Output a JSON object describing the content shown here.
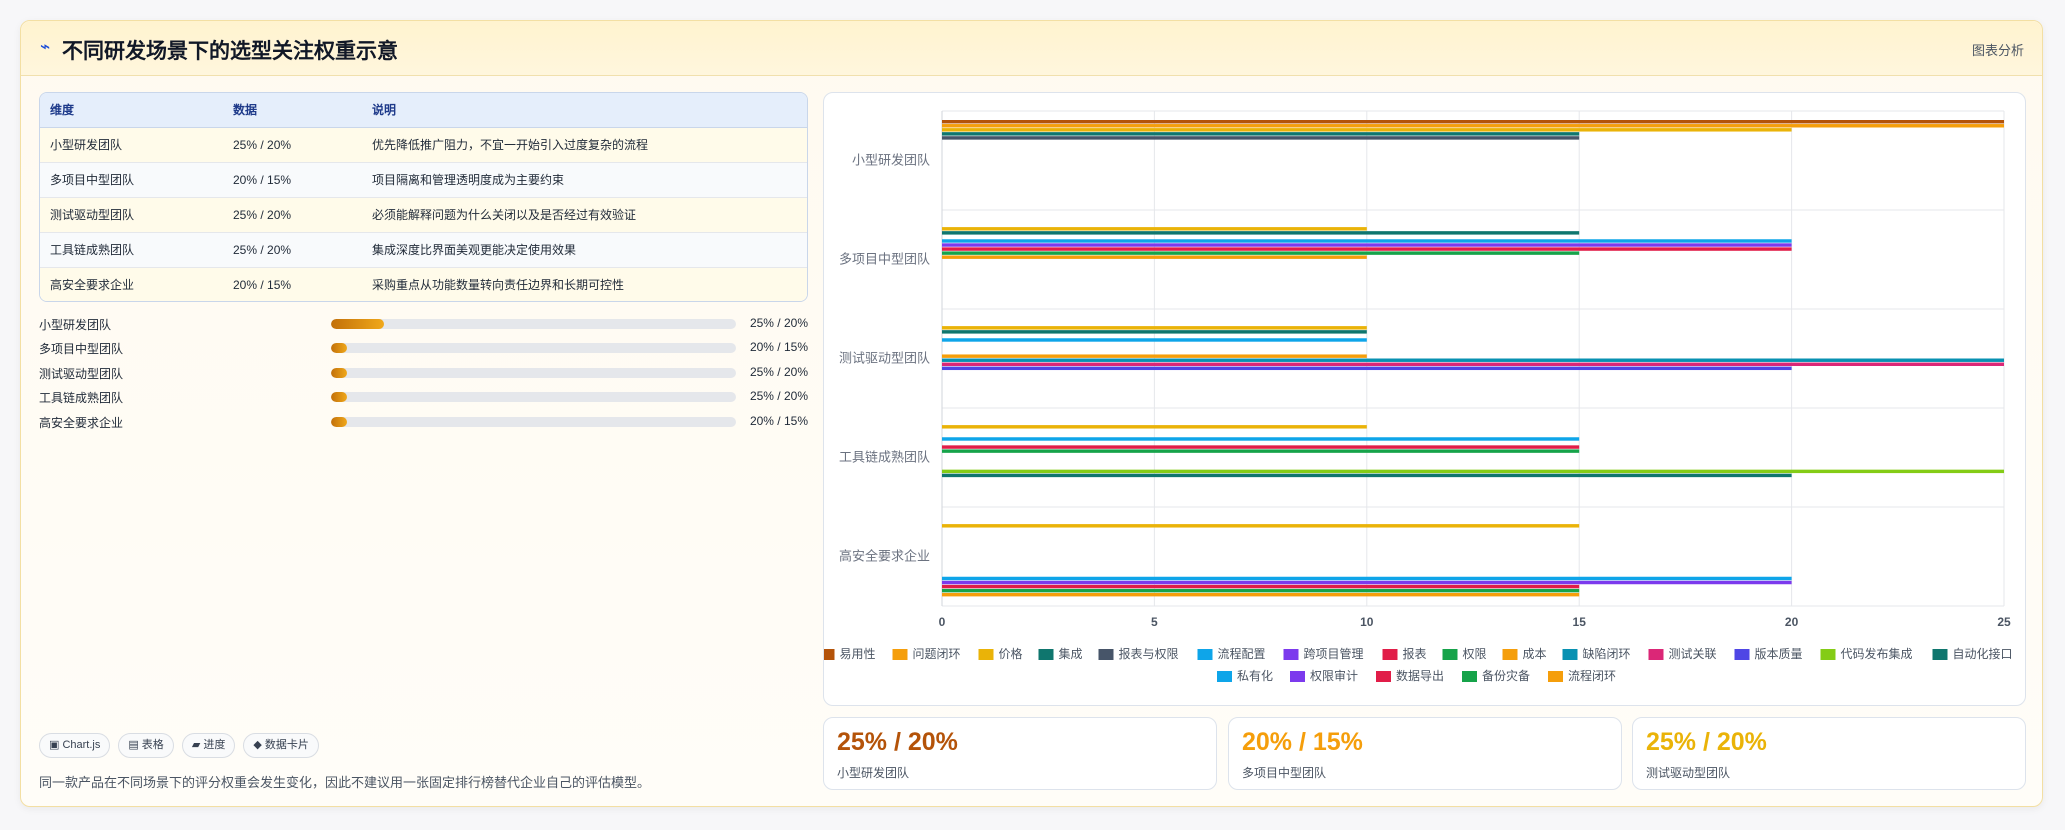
{
  "header": {
    "title": "不同研发场景下的选型关注权重示意",
    "action": "图表分析",
    "logo_icon": "⌁"
  },
  "table": {
    "headers": [
      "维度",
      "数据",
      "说明"
    ],
    "rows": [
      {
        "name": "小型研发团队",
        "data": "25% / 20%",
        "desc": "优先降低推广阻力，不宜一开始引入过度复杂的流程"
      },
      {
        "name": "多项目中型团队",
        "data": "20% / 15%",
        "desc": "项目隔离和管理透明度成为主要约束"
      },
      {
        "name": "测试驱动型团队",
        "data": "25% / 20%",
        "desc": "必须能解释问题为什么关闭以及是否经过有效验证"
      },
      {
        "name": "工具链成熟团队",
        "data": "25% / 20%",
        "desc": "集成深度比界面美观更能决定使用效果"
      },
      {
        "name": "高安全要求企业",
        "data": "20% / 15%",
        "desc": "采购重点从功能数量转向责任边界和长期可控性"
      }
    ]
  },
  "progress": [
    {
      "label": "小型研发团队",
      "value": "25% / 20%",
      "fill": 0.13
    },
    {
      "label": "多项目中型团队",
      "value": "20% / 15%",
      "fill": 0.04
    },
    {
      "label": "测试驱动型团队",
      "value": "25% / 20%",
      "fill": 0.04
    },
    {
      "label": "工具链成熟团队",
      "value": "25% / 20%",
      "fill": 0.04
    },
    {
      "label": "高安全要求企业",
      "value": "20% / 15%",
      "fill": 0.04
    }
  ],
  "chips": [
    "▣ Chart.js",
    "▤ 表格",
    "▰ 进度",
    "◆ 数据卡片"
  ],
  "note": "同一款产品在不同场景下的评分权重会发生变化，因此不建议用一张固定排行榜替代企业自己的评估模型。",
  "stats": [
    {
      "value": "25% / 20%",
      "label": "小型研发团队",
      "color": "#b45309"
    },
    {
      "value": "20% / 15%",
      "label": "多项目中型团队",
      "color": "#f59e0b"
    },
    {
      "value": "25% / 20%",
      "label": "测试驱动型团队",
      "color": "#eab308"
    }
  ],
  "chart_data": {
    "type": "bar",
    "orientation": "horizontal",
    "categories": [
      "小型研发团队",
      "多项目中型团队",
      "测试驱动型团队",
      "工具链成熟团队",
      "高安全要求企业"
    ],
    "xlim": [
      0,
      25
    ],
    "xticks": [
      0,
      5,
      10,
      15,
      20,
      25
    ],
    "grid": true,
    "legend_position": "bottom",
    "series": [
      {
        "name": "易用性",
        "color": "#b45309",
        "values": [
          25,
          null,
          null,
          null,
          null
        ]
      },
      {
        "name": "问题闭环",
        "color": "#f59e0b",
        "values": [
          25,
          null,
          null,
          null,
          null
        ]
      },
      {
        "name": "价格",
        "color": "#eab308",
        "values": [
          20,
          10,
          10,
          10,
          15
        ]
      },
      {
        "name": "集成",
        "color": "#0f766e",
        "values": [
          15,
          15,
          10,
          null,
          null
        ]
      },
      {
        "name": "报表与权限",
        "color": "#475569",
        "values": [
          15,
          null,
          null,
          null,
          null
        ]
      },
      {
        "name": "流程配置",
        "color": "#0ea5e9",
        "values": [
          null,
          20,
          10,
          15,
          null
        ]
      },
      {
        "name": "跨项目管理",
        "color": "#7c3aed",
        "values": [
          null,
          20,
          null,
          null,
          null
        ]
      },
      {
        "name": "报表",
        "color": "#e11d48",
        "values": [
          null,
          20,
          null,
          15,
          null
        ]
      },
      {
        "name": "权限",
        "color": "#16a34a",
        "values": [
          null,
          15,
          null,
          15,
          null
        ]
      },
      {
        "name": "成本",
        "color": "#f59e0b",
        "values": [
          null,
          10,
          10,
          null,
          null
        ]
      },
      {
        "name": "缺陷闭环",
        "color": "#0891b2",
        "values": [
          null,
          null,
          25,
          null,
          null
        ]
      },
      {
        "name": "测试关联",
        "color": "#db2777",
        "values": [
          null,
          null,
          25,
          null,
          null
        ]
      },
      {
        "name": "版本质量",
        "color": "#4f46e5",
        "values": [
          null,
          null,
          20,
          null,
          null
        ]
      },
      {
        "name": "代码发布集成",
        "color": "#84cc16",
        "values": [
          null,
          null,
          null,
          25,
          null
        ]
      },
      {
        "name": "自动化接口",
        "color": "#0f766e",
        "values": [
          null,
          null,
          null,
          20,
          null
        ]
      },
      {
        "name": "私有化",
        "color": "#0ea5e9",
        "values": [
          null,
          null,
          null,
          null,
          20
        ]
      },
      {
        "name": "权限审计",
        "color": "#7c3aed",
        "values": [
          null,
          null,
          null,
          null,
          20
        ]
      },
      {
        "name": "数据导出",
        "color": "#e11d48",
        "values": [
          null,
          null,
          null,
          null,
          15
        ]
      },
      {
        "name": "备份灾备",
        "color": "#16a34a",
        "values": [
          null,
          null,
          null,
          null,
          15
        ]
      },
      {
        "name": "流程闭环",
        "color": "#f59e0b",
        "values": [
          null,
          null,
          null,
          null,
          15
        ]
      }
    ]
  }
}
